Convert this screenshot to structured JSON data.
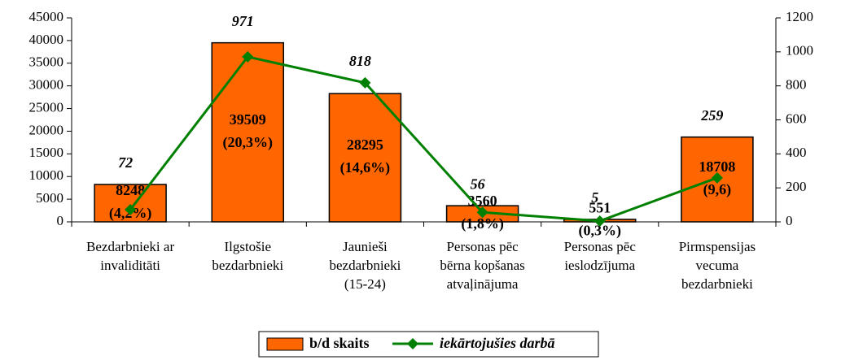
{
  "chart_data": {
    "type": "bar_line",
    "categories": [
      [
        "Bezdarbnieki ar",
        "invaliditāti"
      ],
      [
        "Ilgstošie",
        "bezdarbnieki"
      ],
      [
        "Jaunieši",
        "bezdarbnieki",
        "(15-24)"
      ],
      [
        "Personas pēc",
        "bērna kopšanas",
        "atvaļinājuma"
      ],
      [
        "Personas pēc",
        "ieslodzījuma"
      ],
      [
        "Pirmspensijas",
        "vecuma",
        "bezdarbnieki"
      ]
    ],
    "series": [
      {
        "name": "b/d skaits",
        "type": "bar",
        "color": "#ff6600",
        "values": [
          8248,
          39509,
          28295,
          3560,
          551,
          18708
        ],
        "percent_labels": [
          "(4,2%)",
          "(20,3%)",
          "(14,6%)",
          "(1,8%)",
          "(0,3%)",
          "(9,6)"
        ]
      },
      {
        "name": "iekārtojušies darbā",
        "type": "line",
        "axis": "y2",
        "color": "#008000",
        "values": [
          72,
          971,
          818,
          56,
          5,
          259
        ]
      }
    ],
    "ylim": [
      0,
      45000
    ],
    "yticks": [
      0,
      5000,
      10000,
      15000,
      20000,
      25000,
      30000,
      35000,
      40000,
      45000
    ],
    "y2lim": [
      0,
      1200
    ],
    "y2ticks": [
      0,
      200,
      400,
      600,
      800,
      1000,
      1200
    ],
    "legend": "bottom"
  }
}
